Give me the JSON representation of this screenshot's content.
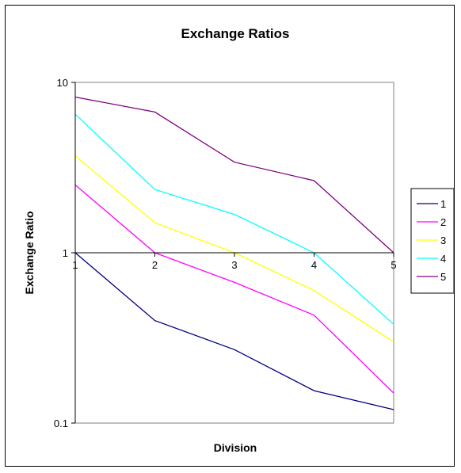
{
  "chart_data": {
    "type": "line",
    "title": "Exchange Ratios",
    "xlabel": "Division",
    "ylabel": "Exchange Ratio",
    "x": [
      1,
      2,
      3,
      4,
      5
    ],
    "x_tick_labels": [
      "1",
      "2",
      "3",
      "4",
      "5"
    ],
    "y_scale": "log",
    "ylim": [
      0.1,
      10
    ],
    "y_tick_labels": [
      "10",
      "1",
      "0.1"
    ],
    "y_tick_values": [
      10,
      1,
      0.1
    ],
    "grid": false,
    "legend_position": "right",
    "series": [
      {
        "name": "1",
        "color": "#000080",
        "values": [
          1.0,
          0.4,
          0.27,
          0.155,
          0.12
        ]
      },
      {
        "name": "2",
        "color": "#ff00ff",
        "values": [
          2.5,
          1.0,
          0.67,
          0.43,
          0.15
        ]
      },
      {
        "name": "3",
        "color": "#ffff00",
        "values": [
          3.7,
          1.5,
          1.0,
          0.6,
          0.3
        ]
      },
      {
        "name": "4",
        "color": "#00ffff",
        "values": [
          6.5,
          2.35,
          1.68,
          1.0,
          0.38
        ]
      },
      {
        "name": "5",
        "color": "#800080",
        "values": [
          8.2,
          6.7,
          3.4,
          2.65,
          1.0
        ]
      }
    ]
  }
}
